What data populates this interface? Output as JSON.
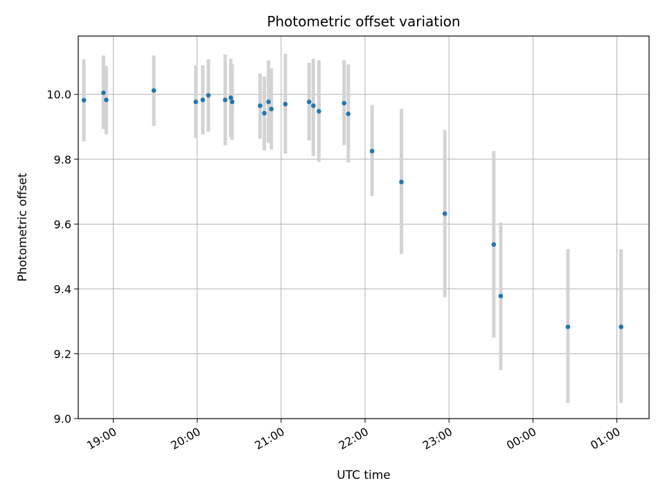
{
  "chart_data": {
    "type": "scatter",
    "title": "Photometric offset variation",
    "xlabel": "UTC time",
    "ylabel": "Photometric offset",
    "x_unit": "UTC time (HH:MM), values after midnight shown past 24:00",
    "xlim": [
      "18:35",
      "01:23"
    ],
    "ylim": [
      9.0,
      10.18
    ],
    "x_ticks": [
      "19:00",
      "20:00",
      "21:00",
      "22:00",
      "23:00",
      "00:00",
      "01:00"
    ],
    "y_ticks": [
      "9.0",
      "9.2",
      "9.4",
      "9.6",
      "9.8",
      "10.0"
    ],
    "grid": true,
    "point_color": "#1f77b4",
    "errorbar_color": "#d3d3d3",
    "points": [
      {
        "x": "18:39",
        "y": 9.982,
        "lo": 9.855,
        "hi": 10.108
      },
      {
        "x": "18:53",
        "y": 10.005,
        "lo": 9.893,
        "hi": 10.12
      },
      {
        "x": "18:55",
        "y": 9.983,
        "lo": 9.877,
        "hi": 10.088
      },
      {
        "x": "19:29",
        "y": 10.012,
        "lo": 9.903,
        "hi": 10.12
      },
      {
        "x": "19:59",
        "y": 9.977,
        "lo": 9.865,
        "hi": 10.09
      },
      {
        "x": "20:04",
        "y": 9.983,
        "lo": 9.877,
        "hi": 10.09
      },
      {
        "x": "20:08",
        "y": 9.997,
        "lo": 9.885,
        "hi": 10.108
      },
      {
        "x": "20:20",
        "y": 9.983,
        "lo": 9.843,
        "hi": 10.123
      },
      {
        "x": "20:24",
        "y": 9.99,
        "lo": 9.868,
        "hi": 10.11
      },
      {
        "x": "20:25",
        "y": 9.977,
        "lo": 9.86,
        "hi": 10.093
      },
      {
        "x": "20:45",
        "y": 9.965,
        "lo": 9.863,
        "hi": 10.065
      },
      {
        "x": "20:48",
        "y": 9.942,
        "lo": 9.827,
        "hi": 10.055
      },
      {
        "x": "20:51",
        "y": 9.977,
        "lo": 9.85,
        "hi": 10.105
      },
      {
        "x": "20:53",
        "y": 9.955,
        "lo": 9.83,
        "hi": 10.08
      },
      {
        "x": "21:03",
        "y": 9.97,
        "lo": 9.818,
        "hi": 10.125
      },
      {
        "x": "21:20",
        "y": 9.977,
        "lo": 9.858,
        "hi": 10.097
      },
      {
        "x": "21:23",
        "y": 9.965,
        "lo": 9.81,
        "hi": 10.11
      },
      {
        "x": "21:27",
        "y": 9.948,
        "lo": 9.792,
        "hi": 10.105
      },
      {
        "x": "21:45",
        "y": 9.973,
        "lo": 9.843,
        "hi": 10.105
      },
      {
        "x": "21:48",
        "y": 9.94,
        "lo": 9.79,
        "hi": 10.093
      },
      {
        "x": "22:05",
        "y": 9.825,
        "lo": 9.687,
        "hi": 9.967
      },
      {
        "x": "22:26",
        "y": 9.73,
        "lo": 9.508,
        "hi": 9.955
      },
      {
        "x": "22:57",
        "y": 9.632,
        "lo": 9.375,
        "hi": 9.89
      },
      {
        "x": "23:32",
        "y": 9.537,
        "lo": 9.25,
        "hi": 9.825
      },
      {
        "x": "23:37",
        "y": 9.378,
        "lo": 9.15,
        "hi": 9.605
      },
      {
        "x": "24:25",
        "y": 9.283,
        "lo": 9.048,
        "hi": 9.523
      },
      {
        "x": "25:03",
        "y": 9.283,
        "lo": 9.048,
        "hi": 9.523
      }
    ]
  }
}
